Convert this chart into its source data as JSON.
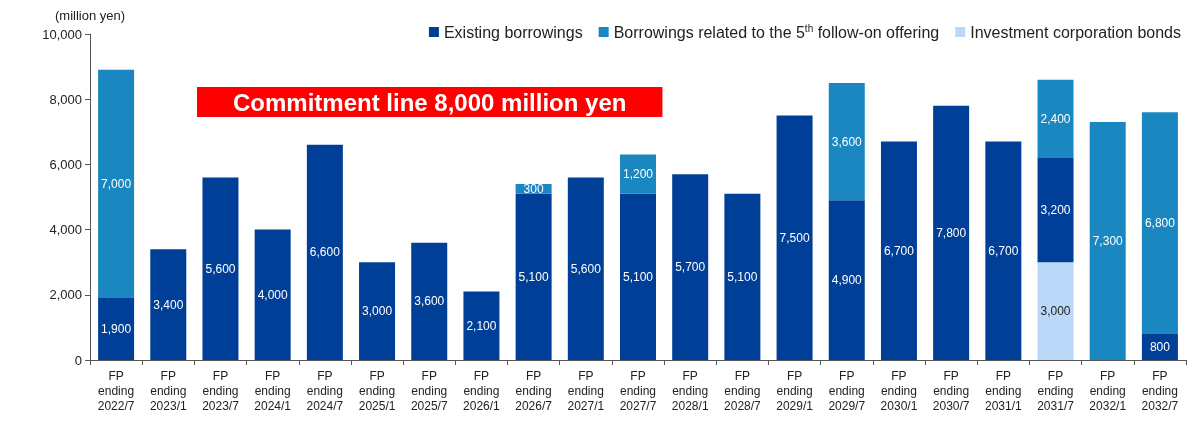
{
  "chart_data": {
    "type": "bar",
    "stacked": true,
    "ylabel": "(million yen)",
    "annotations": [
      "Commitment line 8,000 million yen"
    ],
    "categories": [
      "FP ending 2022/7",
      "FP ending 2023/1",
      "FP ending 2023/7",
      "FP ending 2024/1",
      "FP ending 2024/7",
      "FP ending 2025/1",
      "FP ending 2025/7",
      "FP ending 2026/1",
      "FP ending 2026/7",
      "FP ending 2027/1",
      "FP ending 2027/7",
      "FP ending 2028/1",
      "FP ending 2028/7",
      "FP ending 2029/1",
      "FP ending 2029/7",
      "FP ending 2030/1",
      "FP ending 2030/7",
      "FP ending 2031/1",
      "FP ending 2031/7",
      "FP ending 2032/1",
      "FP ending 2032/7"
    ],
    "series": [
      {
        "name": "Investment corporation bonds",
        "color": "#bcd8f8",
        "values": [
          null,
          null,
          null,
          null,
          null,
          null,
          null,
          null,
          null,
          null,
          null,
          null,
          null,
          null,
          null,
          null,
          null,
          null,
          3000,
          null,
          null
        ],
        "value_labels": [
          null,
          null,
          null,
          null,
          null,
          null,
          null,
          null,
          null,
          null,
          null,
          null,
          null,
          null,
          null,
          null,
          null,
          null,
          "3,000",
          null,
          null
        ]
      },
      {
        "name": "Existing borrowings",
        "color": "#003f98",
        "values": [
          1900,
          3400,
          5600,
          4000,
          6600,
          3000,
          3600,
          2100,
          5100,
          5600,
          5100,
          5700,
          5100,
          7500,
          4900,
          6700,
          7800,
          6700,
          3200,
          null,
          800
        ],
        "value_labels": [
          "1,900",
          "3,400",
          "5,600",
          "4,000",
          "6,600",
          "3,000",
          "3,600",
          "2,100",
          "5,100",
          "5,600",
          "5,100",
          "5,700",
          "5,100",
          "7,500",
          "4,900",
          "6,700",
          "7,800",
          "6,700",
          "3,200",
          null,
          "800"
        ]
      },
      {
        "name": "Borrowings related to the 5$^{th}$ follow-on offering",
        "color": "#1a87c0",
        "values": [
          7000,
          null,
          null,
          null,
          null,
          null,
          null,
          null,
          300,
          null,
          1200,
          null,
          null,
          null,
          3600,
          null,
          null,
          null,
          2400,
          7300,
          6800
        ],
        "value_labels": [
          "7,000",
          null,
          null,
          null,
          null,
          null,
          null,
          null,
          "300",
          null,
          "1,200",
          null,
          null,
          null,
          "3,600",
          null,
          null,
          null,
          "2,400",
          "7,300",
          "6,800"
        ]
      }
    ],
    "ylim": [
      0,
      10000
    ],
    "yticks": [
      {
        "value": 0,
        "label": "0"
      },
      {
        "value": 2000,
        "label": "2,000"
      },
      {
        "value": 4000,
        "label": "4,000"
      },
      {
        "value": 6000,
        "label": "6,000"
      },
      {
        "value": 8000,
        "label": "8,000"
      },
      {
        "value": 10000,
        "label": "10,000"
      }
    ],
    "grid": false,
    "legend": "top right"
  }
}
